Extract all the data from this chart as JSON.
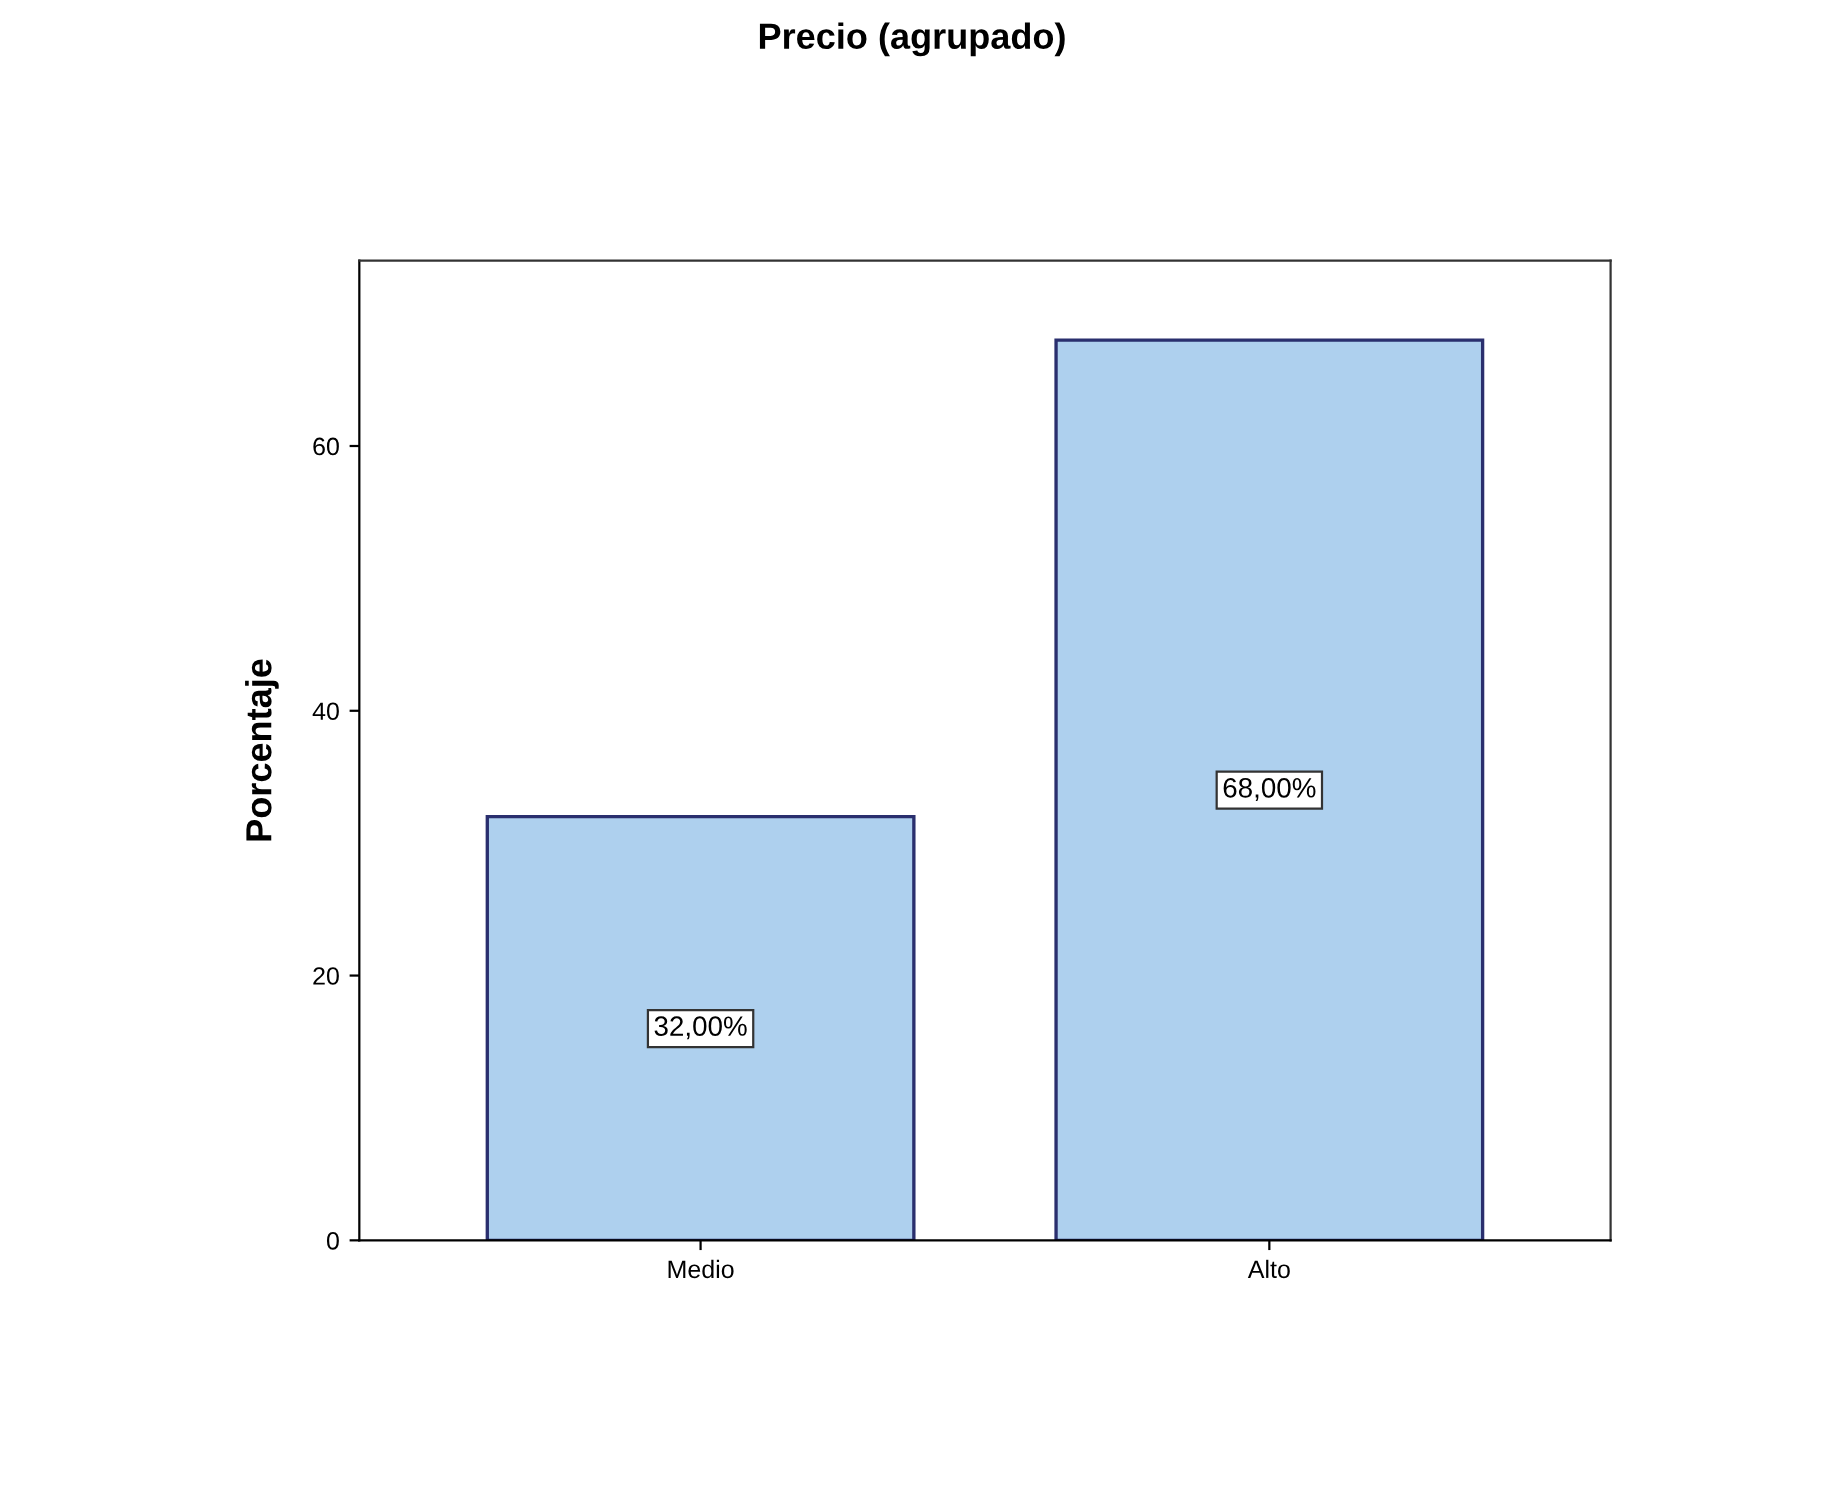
{
  "chart_data": {
    "type": "bar",
    "title": "Precio (agrupado)",
    "ylabel": "Porcentaje",
    "categories": [
      "Medio",
      "Alto"
    ],
    "values": [
      32,
      68
    ],
    "value_labels": [
      "32,00%",
      "68,00%"
    ],
    "color": "#aed0ee",
    "ylim": [
      0,
      74
    ],
    "yticks": [
      0,
      20,
      40,
      60
    ],
    "grid": false,
    "legend": false
  }
}
